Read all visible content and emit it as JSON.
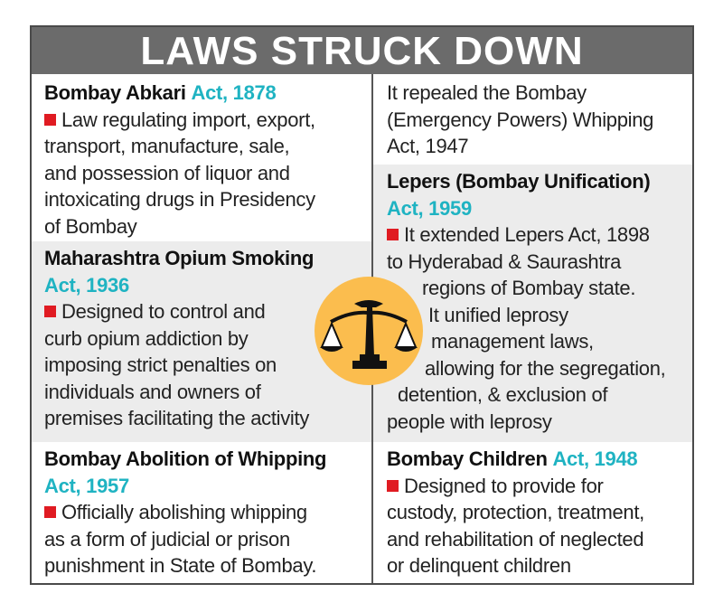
{
  "title": "LAWS STRUCK DOWN",
  "colors": {
    "header_bg": "#6b6b6b",
    "act_accent": "#1fb3c2",
    "bullet": "#e01b22",
    "shaded_bg": "#ececec",
    "emblem_bg": "#fbbd4e"
  },
  "emblem_icon": "scales-of-justice-icon",
  "left": [
    {
      "name": "Bombay Abkari",
      "act": "Act, 1878",
      "lines": [
        "Law regulating import, export,",
        "transport, manufacture, sale,",
        "and possession of liquor and",
        "intoxicating drugs in Presidency",
        "of Bombay"
      ]
    },
    {
      "name": "Maharashtra Opium Smoking",
      "act": "Act, 1936",
      "lines": [
        "Designed to control and",
        "curb opium addiction by",
        "imposing strict penalties on",
        "individuals and owners of",
        "premises facilitating the activity"
      ]
    },
    {
      "name": "Bombay Abolition of Whipping",
      "act": "Act, 1957",
      "lines": [
        "Officially abolishing whipping",
        "as a form of judicial or prison",
        "punishment in State of Bombay."
      ]
    }
  ],
  "right": [
    {
      "lines": [
        "It repealed the Bombay",
        "(Emergency Powers) Whipping",
        "Act, 1947"
      ]
    },
    {
      "name": "Lepers (Bombay Unification)",
      "act": "Act, 1959",
      "lines": [
        "It extended Lepers Act, 1898",
        "to Hyderabad & Saurashtra",
        "regions of Bombay state.",
        "It unified leprosy",
        "management laws,",
        "allowing for the segregation,",
        "detention, & exclusion of",
        "people with leprosy"
      ]
    },
    {
      "name": "Bombay Children",
      "act": "Act, 1948",
      "lines": [
        "Designed to provide for",
        "custody, protection, treatment,",
        "and rehabilitation of neglected",
        "or delinquent children"
      ]
    }
  ]
}
